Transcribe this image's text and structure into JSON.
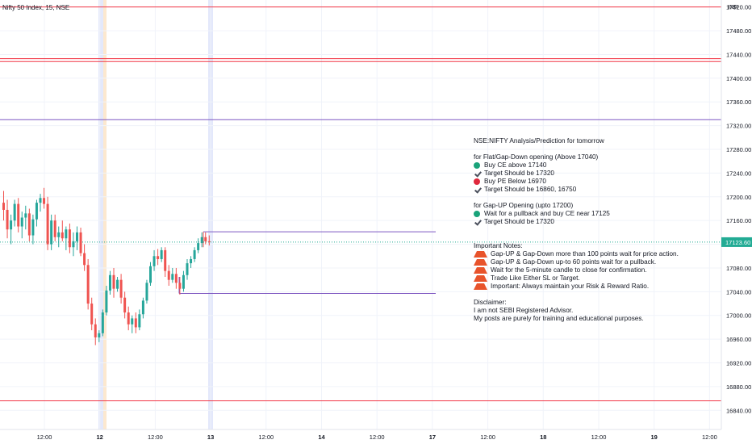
{
  "symbol": {
    "title": "Nifty 50 Index, 15, NSE"
  },
  "colors": {
    "up": "#26a69a",
    "down": "#ef5350",
    "resistance": "#f23645",
    "channel": "#7e57c2",
    "pricelabel": "#22ab94",
    "session_orange": "#fce8cf",
    "session_blue": "#e3e8fb"
  },
  "chart_data": {
    "type": "candlestick",
    "currency": "INR",
    "ylim": [
      16820,
      17525
    ],
    "y_ticks": [
      "17520.00",
      "17480.00",
      "17440.00",
      "17400.00",
      "17360.00",
      "17320.00",
      "17280.00",
      "17240.00",
      "17200.00",
      "17160.00",
      "17120.00",
      "17080.00",
      "17040.00",
      "17000.00",
      "16960.00",
      "16920.00",
      "16880.00",
      "16840.00"
    ],
    "y_tick_values": [
      17520,
      17480,
      17440,
      17400,
      17360,
      17320,
      17280,
      17240,
      17200,
      17160,
      17120,
      17080,
      17040,
      17000,
      16960,
      16920,
      16880,
      16840
    ],
    "x_ticks": [
      "12:00",
      "12",
      "12:00",
      "13",
      "12:00",
      "14",
      "12:00",
      "17",
      "12:00",
      "18",
      "12:00",
      "19",
      "12:00"
    ],
    "last_price": "17123.60",
    "last_price_value": 17123.6,
    "horizontal_levels": [
      {
        "value": 17520,
        "color": "resistance"
      },
      {
        "value": 17433,
        "color": "resistance"
      },
      {
        "value": 17428,
        "color": "resistance"
      },
      {
        "value": 17330,
        "color": "channel"
      },
      {
        "value": 16856,
        "color": "resistance"
      }
    ],
    "segments": [
      {
        "x_start": 252,
        "x_end": 540,
        "value": 17141,
        "color": "channel"
      },
      {
        "x_start": 222,
        "x_end": 540,
        "value": 17037,
        "color": "channel"
      }
    ],
    "candles": [
      {
        "o": 17190,
        "h": 17210,
        "l": 17160,
        "c": 17178
      },
      {
        "o": 17178,
        "h": 17195,
        "l": 17130,
        "c": 17145
      },
      {
        "o": 17145,
        "h": 17170,
        "l": 17120,
        "c": 17160
      },
      {
        "o": 17160,
        "h": 17195,
        "l": 17150,
        "c": 17188
      },
      {
        "o": 17188,
        "h": 17198,
        "l": 17140,
        "c": 17150
      },
      {
        "o": 17150,
        "h": 17175,
        "l": 17130,
        "c": 17165
      },
      {
        "o": 17165,
        "h": 17185,
        "l": 17145,
        "c": 17172
      },
      {
        "o": 17172,
        "h": 17180,
        "l": 17125,
        "c": 17135
      },
      {
        "o": 17135,
        "h": 17170,
        "l": 17120,
        "c": 17162
      },
      {
        "o": 17162,
        "h": 17195,
        "l": 17150,
        "c": 17190
      },
      {
        "o": 17190,
        "h": 17205,
        "l": 17175,
        "c": 17198
      },
      {
        "o": 17198,
        "h": 17215,
        "l": 17180,
        "c": 17188
      },
      {
        "o": 17188,
        "h": 17200,
        "l": 17110,
        "c": 17120
      },
      {
        "o": 17120,
        "h": 17170,
        "l": 17110,
        "c": 17160
      },
      {
        "o": 17160,
        "h": 17170,
        "l": 17125,
        "c": 17132
      },
      {
        "o": 17132,
        "h": 17150,
        "l": 17115,
        "c": 17140
      },
      {
        "o": 17140,
        "h": 17160,
        "l": 17125,
        "c": 17130
      },
      {
        "o": 17130,
        "h": 17150,
        "l": 17110,
        "c": 17145
      },
      {
        "o": 17145,
        "h": 17155,
        "l": 17105,
        "c": 17115
      },
      {
        "o": 17115,
        "h": 17140,
        "l": 17100,
        "c": 17125
      },
      {
        "o": 17125,
        "h": 17150,
        "l": 17110,
        "c": 17140
      },
      {
        "o": 17140,
        "h": 17148,
        "l": 17100,
        "c": 17105
      },
      {
        "o": 17105,
        "h": 17120,
        "l": 17075,
        "c": 17085
      },
      {
        "o": 17085,
        "h": 17095,
        "l": 17010,
        "c": 17020
      },
      {
        "o": 17020,
        "h": 17030,
        "l": 16975,
        "c": 16985
      },
      {
        "o": 16985,
        "h": 16995,
        "l": 16950,
        "c": 16963
      },
      {
        "o": 16963,
        "h": 16975,
        "l": 16955,
        "c": 16970
      },
      {
        "o": 16970,
        "h": 17010,
        "l": 16965,
        "c": 17005
      },
      {
        "o": 17005,
        "h": 17050,
        "l": 17000,
        "c": 17042
      },
      {
        "o": 17042,
        "h": 17075,
        "l": 17035,
        "c": 17068
      },
      {
        "o": 17068,
        "h": 17080,
        "l": 17030,
        "c": 17045
      },
      {
        "o": 17045,
        "h": 17065,
        "l": 17040,
        "c": 17060
      },
      {
        "o": 17060,
        "h": 17070,
        "l": 17020,
        "c": 17030
      },
      {
        "o": 17030,
        "h": 17040,
        "l": 16995,
        "c": 17005
      },
      {
        "o": 17005,
        "h": 17015,
        "l": 16975,
        "c": 16985
      },
      {
        "o": 16985,
        "h": 17000,
        "l": 16970,
        "c": 16995
      },
      {
        "o": 16995,
        "h": 17005,
        "l": 16970,
        "c": 16980
      },
      {
        "o": 16980,
        "h": 17010,
        "l": 16975,
        "c": 17002
      },
      {
        "o": 17002,
        "h": 17030,
        "l": 16995,
        "c": 17025
      },
      {
        "o": 17025,
        "h": 17060,
        "l": 17020,
        "c": 17055
      },
      {
        "o": 17055,
        "h": 17090,
        "l": 17050,
        "c": 17083
      },
      {
        "o": 17083,
        "h": 17110,
        "l": 17075,
        "c": 17100
      },
      {
        "o": 17100,
        "h": 17112,
        "l": 17085,
        "c": 17095
      },
      {
        "o": 17095,
        "h": 17115,
        "l": 17090,
        "c": 17110
      },
      {
        "o": 17110,
        "h": 17115,
        "l": 17065,
        "c": 17075
      },
      {
        "o": 17075,
        "h": 17085,
        "l": 17050,
        "c": 17060
      },
      {
        "o": 17060,
        "h": 17080,
        "l": 17055,
        "c": 17070
      },
      {
        "o": 17070,
        "h": 17080,
        "l": 17045,
        "c": 17055
      },
      {
        "o": 17055,
        "h": 17065,
        "l": 17035,
        "c": 17045
      },
      {
        "o": 17045,
        "h": 17075,
        "l": 17040,
        "c": 17068
      },
      {
        "o": 17068,
        "h": 17095,
        "l": 17060,
        "c": 17088
      },
      {
        "o": 17088,
        "h": 17100,
        "l": 17080,
        "c": 17095
      },
      {
        "o": 17095,
        "h": 17115,
        "l": 17090,
        "c": 17110
      },
      {
        "o": 17110,
        "h": 17130,
        "l": 17105,
        "c": 17122
      },
      {
        "o": 17122,
        "h": 17140,
        "l": 17115,
        "c": 17132
      },
      {
        "o": 17132,
        "h": 17140,
        "l": 17120,
        "c": 17125
      },
      {
        "o": 17125,
        "h": 17135,
        "l": 17118,
        "c": 17123.6
      }
    ]
  },
  "notes": {
    "heading": "NSE:NIFTY Analysis/Prediction for tomorrow",
    "flat_title": "for Flat/Gap-Down opening (Above 17040)",
    "flat_items": [
      {
        "icon": "green-dot",
        "text": "Buy CE above 17140"
      },
      {
        "icon": "check",
        "text": "Target Should be 17320"
      },
      {
        "icon": "red-dot",
        "text": "Buy PE Below 16970"
      },
      {
        "icon": "check",
        "text": "Target Should be 16860, 16750"
      }
    ],
    "gapup_title": "for Gap-UP Opening (upto 17200)",
    "gapup_items": [
      {
        "icon": "green-dot",
        "text": "Wait for a pullback and buy CE near 17125"
      },
      {
        "icon": "check",
        "text": "Target Should be 17320"
      }
    ],
    "important_title": "Important Notes:",
    "important_items": [
      {
        "icon": "warning",
        "text": "Gap-UP & Gap-Down more than 100 points wait for price action."
      },
      {
        "icon": "warning",
        "text": "Gap-UP & Gap-Down up-to 60 points wait for a pullback."
      },
      {
        "icon": "warning",
        "text": "Wait for the 5-minute candle to close for confirmation."
      },
      {
        "icon": "warning",
        "text": "Trade Like Either SL or Target."
      },
      {
        "icon": "warning",
        "text": "Important: Always maintain your Risk & Reward Ratio."
      }
    ],
    "disclaimer_title": "Disclaimer:",
    "disclaimer_lines": [
      "I am not SEBI Registered Advisor.",
      "My posts are purely for training and educational purposes."
    ]
  }
}
